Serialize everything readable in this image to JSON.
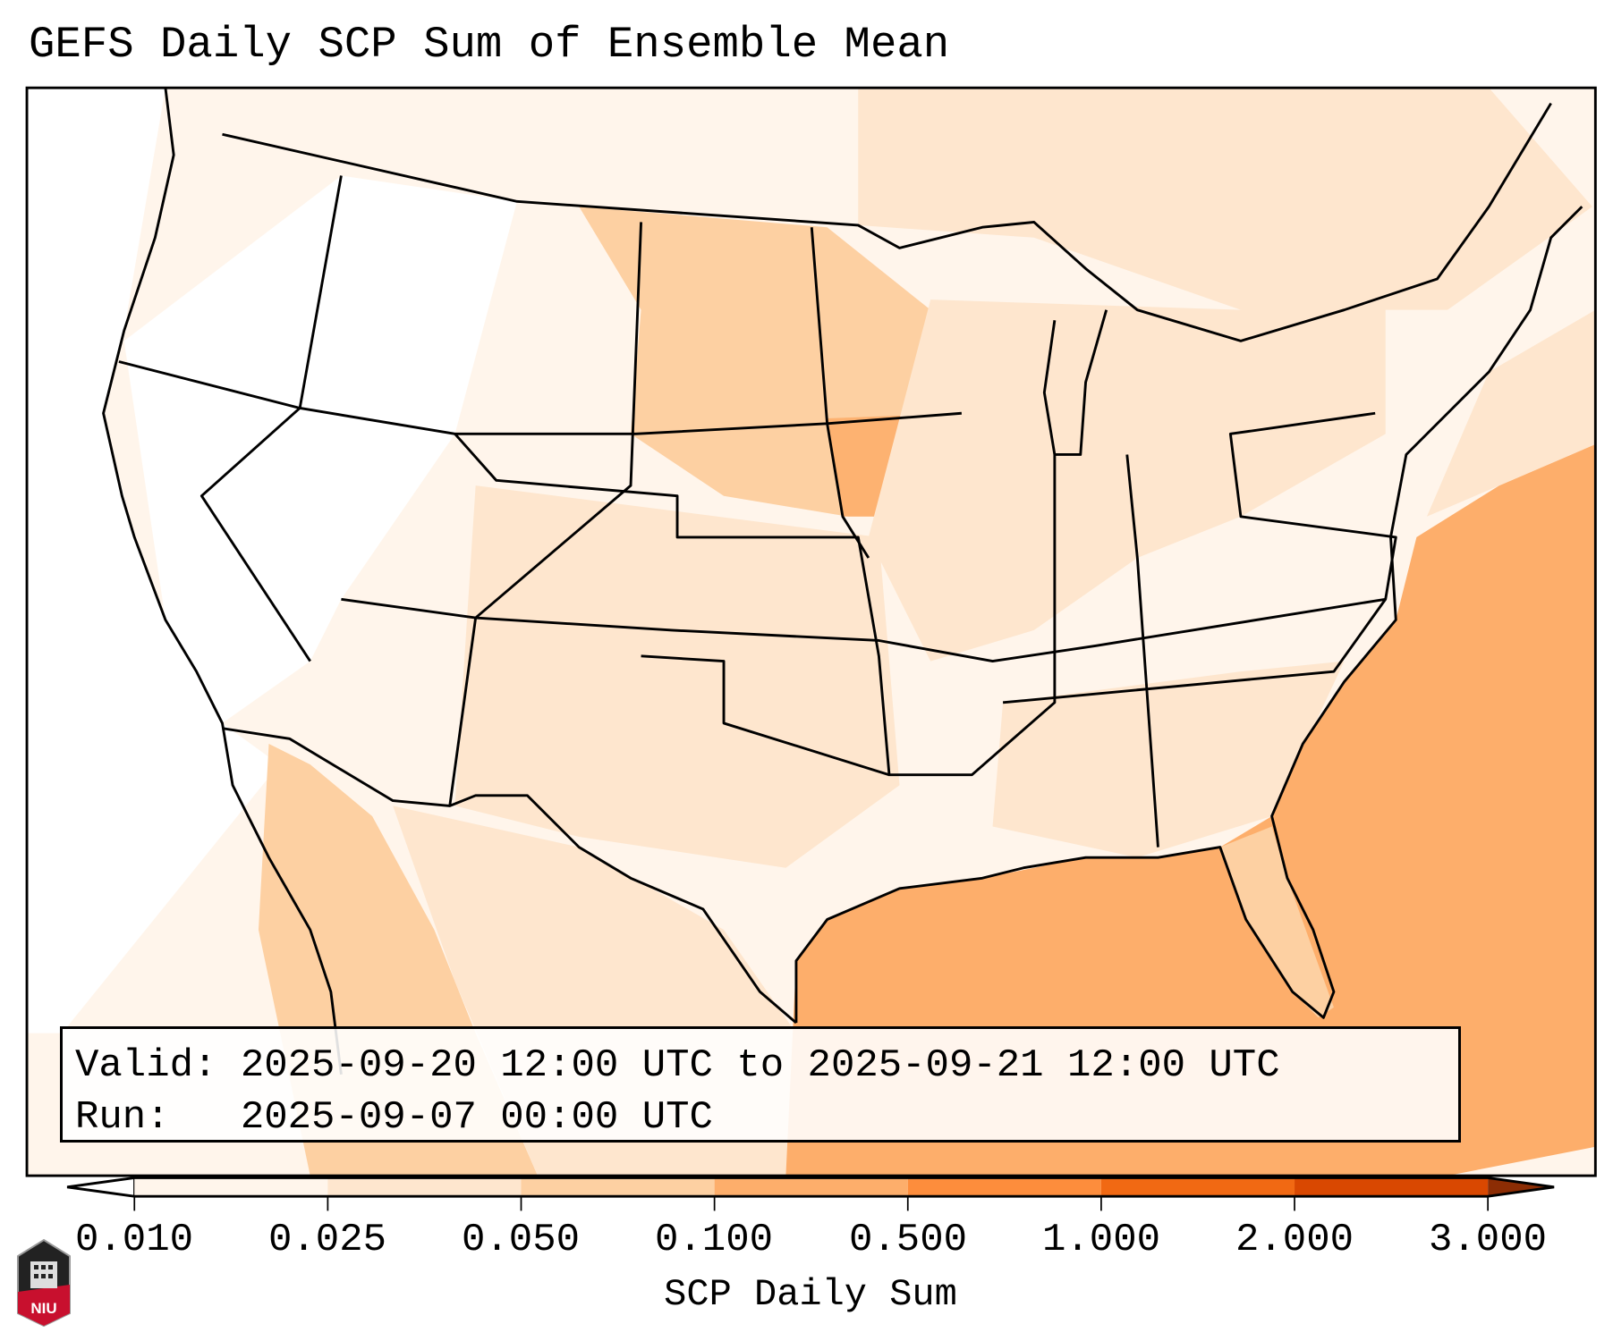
{
  "title": "GEFS Daily SCP Sum of Ensemble Mean",
  "info_box": {
    "valid_line": "Valid: 2025-09-20 12:00 UTC to 2025-09-21 12:00 UTC",
    "run_line": "Run:   2025-09-07 00:00 UTC"
  },
  "colorbar": {
    "label": "SCP Daily Sum",
    "ticks": [
      "0.010",
      "0.025",
      "0.050",
      "0.100",
      "0.500",
      "1.000",
      "2.000",
      "3.000"
    ],
    "colors": [
      "#fff5eb",
      "#fee6ce",
      "#fdd0a2",
      "#fdae6b",
      "#fd8d3c",
      "#f16913",
      "#d94801",
      "#8c2d04"
    ],
    "under_color": "#ffffff"
  },
  "logo": {
    "text": "NIU",
    "color": "#c8102e"
  }
}
